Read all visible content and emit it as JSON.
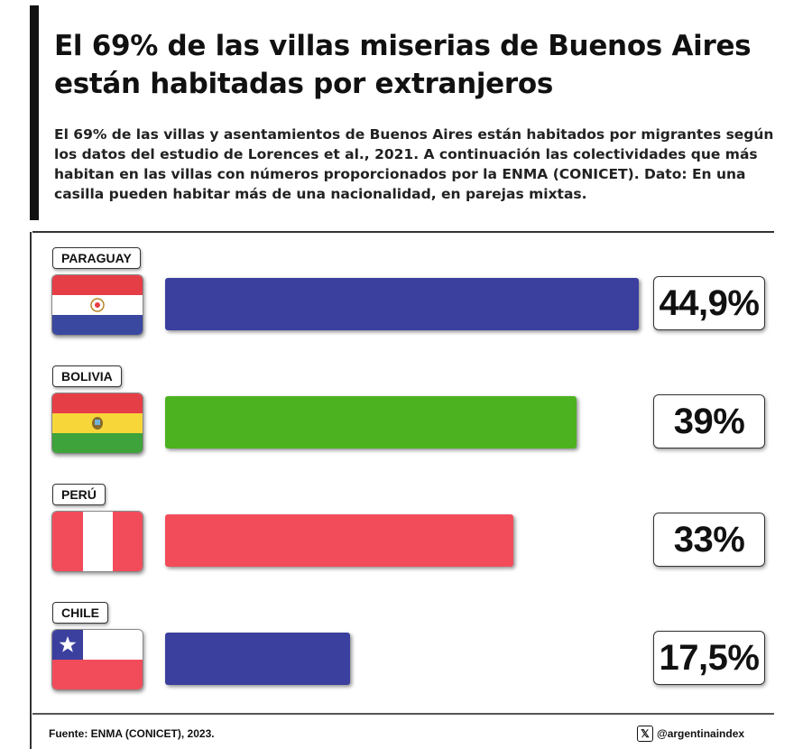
{
  "header": {
    "title": "El 69% de las villas miserias de Buenos Aires están habitadas por extranjeros",
    "subtitle": "El 69% de las villas y asentamientos de Buenos Aires están habitados por migrantes según los datos del estudio de Lorences et al., 2021. A continuación las colectividades que más habitan en las villas con números proporcionados por la ENMA (CONICET). Dato: En una casilla pueden habitar más de una nacionalidad, en parejas mixtas."
  },
  "chart_data": {
    "type": "bar",
    "orientation": "horizontal",
    "title": "El 69% de las villas miserias de Buenos Aires están habitadas por extranjeros",
    "xlabel": "",
    "ylabel": "",
    "categories": [
      "PARAGUAY",
      "BOLIVIA",
      "PERÚ",
      "CHILE"
    ],
    "values": [
      44.9,
      39,
      33,
      17.5
    ],
    "value_labels": [
      "44,9%",
      "39%",
      "33%",
      "17,5%"
    ],
    "colors": [
      "#3b3f9e",
      "#4cb21f",
      "#f24c5a",
      "#3b3f9e"
    ],
    "flags": [
      "paraguay-flag",
      "bolivia-flag",
      "peru-flag",
      "chile-flag"
    ],
    "xlim": [
      0,
      45
    ],
    "grid": false,
    "legend": "none"
  },
  "footer": {
    "source": "Fuente: ENMA (CONICET), 2023.",
    "handle": "@argentinaindex",
    "handle_icon": "x-logo-icon"
  }
}
